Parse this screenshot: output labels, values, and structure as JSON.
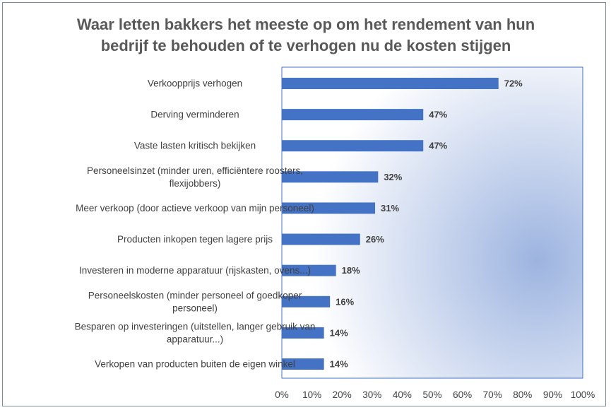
{
  "chart_data": {
    "type": "bar",
    "orientation": "horizontal",
    "title": "Waar letten bakkers het meeste op om het rendement van hun bedrijf te behouden of te verhogen nu de kosten stijgen",
    "title_lines": [
      "Waar letten bakkers het meeste op om het rendement van hun",
      "bedrijf te behouden of te verhogen nu de kosten stijgen"
    ],
    "categories": [
      "Verkoopprijs verhogen",
      "Derving verminderen",
      "Vaste lasten kritisch bekijken",
      "Personeelsinzet (minder uren, efficiëntere roosters, flexijobbers)",
      "Meer verkoop (door actieve verkoop van mijn personeel)",
      "Producten inkopen tegen lagere prijs",
      "Investeren in moderne apparatuur (rijskasten, ovens...)",
      "Personeelskosten (minder personeel of goedkoper personeel)",
      "Besparen op investeringen (uitstellen, langer gebruik van apparatuur...)",
      "Verkopen van producten buiten de eigen winkel"
    ],
    "category_lines": [
      [
        "Verkoopprijs verhogen"
      ],
      [
        "Derving verminderen"
      ],
      [
        "Vaste lasten kritisch bekijken"
      ],
      [
        "Personeelsinzet (minder uren, efficiëntere roosters,",
        "flexijobbers)"
      ],
      [
        "Meer verkoop (door actieve verkoop van mijn personeel)"
      ],
      [
        "Producten inkopen tegen lagere prijs"
      ],
      [
        "Investeren in moderne apparatuur (rijskasten, ovens...)"
      ],
      [
        "Personeelskosten (minder personeel of goedkoper",
        "personeel)"
      ],
      [
        "Besparen op investeringen (uitstellen, langer gebruik van",
        "apparatuur...)"
      ],
      [
        "Verkopen van producten buiten de eigen winkel"
      ]
    ],
    "values": [
      72,
      47,
      47,
      32,
      31,
      26,
      18,
      16,
      14,
      14
    ],
    "data_labels": [
      "72%",
      "47%",
      "47%",
      "32%",
      "31%",
      "26%",
      "18%",
      "16%",
      "14%",
      "14%"
    ],
    "xlim": [
      0,
      100
    ],
    "xticks": [
      0,
      10,
      20,
      30,
      40,
      50,
      60,
      70,
      80,
      90,
      100
    ],
    "xtick_labels": [
      "0%",
      "10%",
      "20%",
      "30%",
      "40%",
      "50%",
      "60%",
      "70%",
      "80%",
      "90%",
      "100%"
    ],
    "xlabel": "",
    "ylabel": "",
    "grid": false,
    "legend": "none",
    "colors": {
      "bar": "#4472c4",
      "plot_gradient_light": "#ffffff",
      "plot_gradient_dark": "#9db4e0",
      "plot_border": "#4472c4",
      "text": "#404040",
      "title": "#595959"
    }
  }
}
